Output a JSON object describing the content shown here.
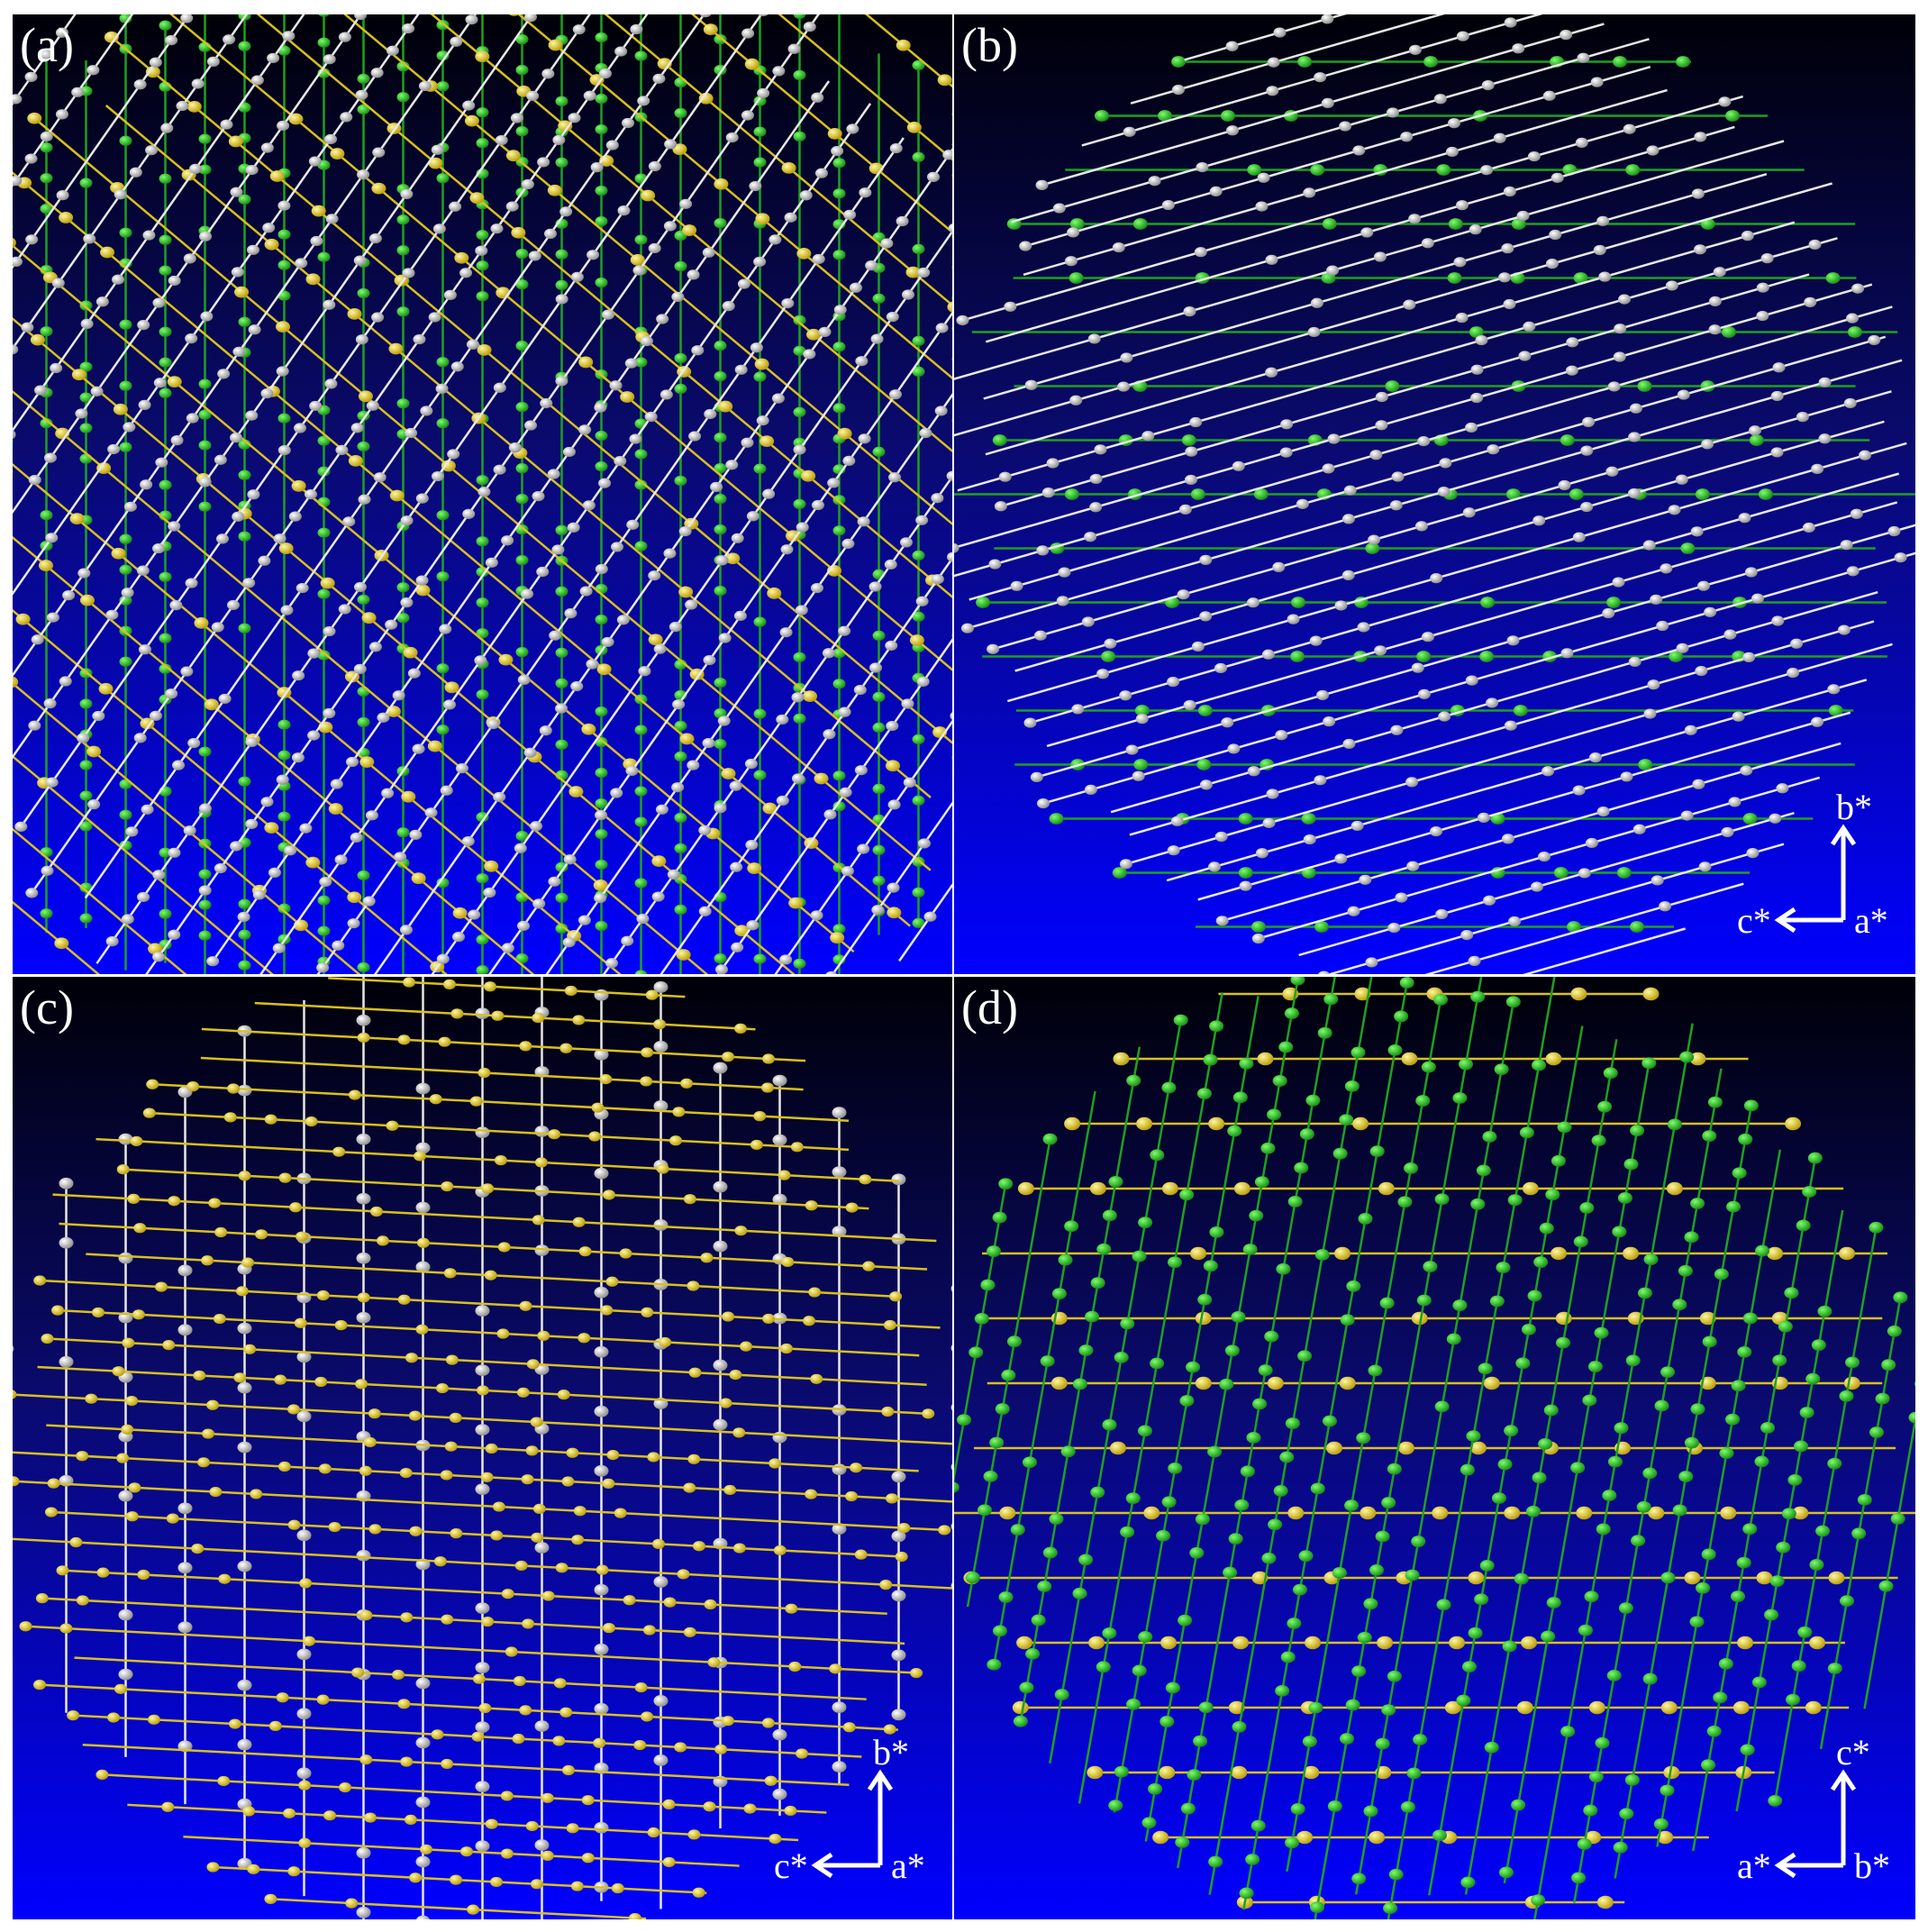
{
  "panels": [
    {
      "label": "(a)"
    },
    {
      "label": "(b)",
      "axes": {
        "up": "b*",
        "left": "c*",
        "corner": "a*"
      }
    },
    {
      "label": "(c)",
      "axes": {
        "up": "b*",
        "left": "c*",
        "corner": "a*"
      }
    },
    {
      "label": "(d)",
      "axes": {
        "up": "c*",
        "left": "a*",
        "corner": "b*"
      }
    }
  ]
}
